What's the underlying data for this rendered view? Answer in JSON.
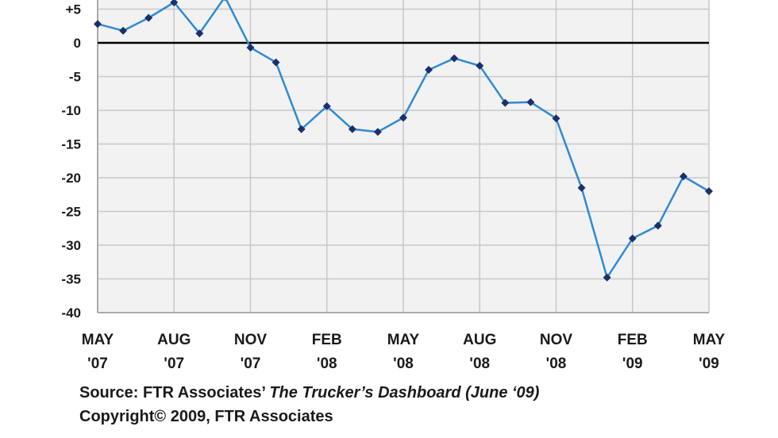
{
  "chart_data": {
    "type": "line",
    "ylim": [
      -40,
      8
    ],
    "yticks": [
      {
        "value": 5,
        "label": "+5"
      },
      {
        "value": 0,
        "label": "0"
      },
      {
        "value": -5,
        "label": "-5"
      },
      {
        "value": -10,
        "label": "-10"
      },
      {
        "value": -15,
        "label": "-15"
      },
      {
        "value": -20,
        "label": "-20"
      },
      {
        "value": -25,
        "label": "-25"
      },
      {
        "value": -30,
        "label": "-30"
      },
      {
        "value": -35,
        "label": "-35"
      },
      {
        "value": -40,
        "label": "-40"
      }
    ],
    "xticks": [
      {
        "month": "MAY",
        "year": "'07",
        "index": 0
      },
      {
        "month": "AUG",
        "year": "'07",
        "index": 3
      },
      {
        "month": "NOV",
        "year": "'07",
        "index": 6
      },
      {
        "month": "FEB",
        "year": "'08",
        "index": 9
      },
      {
        "month": "MAY",
        "year": "'08",
        "index": 12
      },
      {
        "month": "AUG",
        "year": "'08",
        "index": 15
      },
      {
        "month": "NOV",
        "year": "'08",
        "index": 18
      },
      {
        "month": "FEB",
        "year": "'09",
        "index": 21
      },
      {
        "month": "MAY",
        "year": "'09",
        "index": 24
      }
    ],
    "x": [
      "May '07",
      "Jun '07",
      "Jul '07",
      "Aug '07",
      "Sep '07",
      "Oct '07",
      "Nov '07",
      "Dec '07",
      "Jan '08",
      "Feb '08",
      "Mar '08",
      "Apr '08",
      "May '08",
      "Jun '08",
      "Jul '08",
      "Aug '08",
      "Sep '08",
      "Oct '08",
      "Nov '08",
      "Dec '08",
      "Jan '09",
      "Feb '09",
      "Mar '09",
      "Apr '09",
      "May '09"
    ],
    "series": [
      {
        "values": [
          2.8,
          1.8,
          3.7,
          6.0,
          1.4,
          6.8,
          -0.7,
          -2.9,
          -12.8,
          -9.4,
          -12.8,
          -13.2,
          -11.1,
          -4.0,
          -2.3,
          -3.4,
          -8.9,
          -8.8,
          -11.2,
          -21.5,
          -34.8,
          -29.0,
          -27.1,
          -19.8,
          -22.0
        ],
        "color": "#2e8bd0"
      }
    ],
    "marker_color": "#1b2f6b",
    "zero_line_color": "#000000",
    "grid": true,
    "grid_color": "#c8c8c8",
    "plot_background": "#f2f2f2"
  },
  "footer": {
    "source_prefix": "Source: FTR Associates’ ",
    "source_title": "The Trucker’s Dashboard (June ‘09)",
    "copyright": "Copyright© 2009, FTR Associates"
  }
}
